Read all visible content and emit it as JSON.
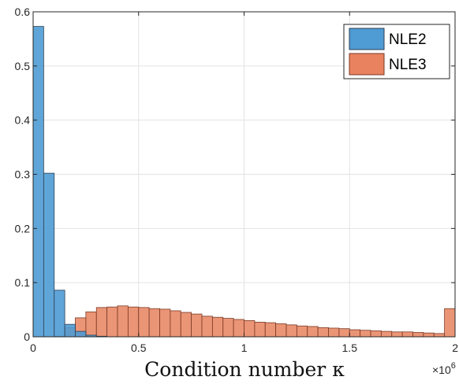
{
  "chart_data": {
    "type": "histogram",
    "xlabel": "Condition number κ",
    "x_exponent_base": "×10",
    "x_exponent_power": "6",
    "xlim": [
      0,
      2
    ],
    "ylim": [
      0,
      0.6
    ],
    "x_ticks": [
      "0",
      "0.5",
      "1",
      "1.5",
      "2"
    ],
    "y_ticks": [
      "0",
      "0.1",
      "0.2",
      "0.3",
      "0.4",
      "0.5",
      "0.6"
    ],
    "x_tick_values": [
      0,
      0.5,
      1,
      1.5,
      2
    ],
    "y_tick_values": [
      0,
      0.1,
      0.2,
      0.3,
      0.4,
      0.5,
      0.6
    ],
    "grid": true,
    "legend_position": "top-right",
    "bin_width": 0.05,
    "series": [
      {
        "name": "NLE2",
        "color": "#4f9bd4",
        "edge_color": "#2b3f52",
        "values": [
          0.573,
          0.302,
          0.086,
          0.023,
          0.01,
          0.003,
          0.001,
          0,
          0,
          0,
          0,
          0,
          0,
          0,
          0,
          0,
          0,
          0,
          0,
          0,
          0,
          0,
          0,
          0,
          0,
          0,
          0,
          0,
          0,
          0,
          0,
          0,
          0,
          0,
          0,
          0,
          0,
          0,
          0,
          0
        ]
      },
      {
        "name": "NLE3",
        "color": "#e8825f",
        "edge_color": "#7a3a24",
        "values": [
          0,
          0,
          0.001,
          0.017,
          0.035,
          0.046,
          0.054,
          0.055,
          0.057,
          0.055,
          0.054,
          0.052,
          0.051,
          0.048,
          0.045,
          0.042,
          0.038,
          0.036,
          0.034,
          0.032,
          0.03,
          0.027,
          0.026,
          0.024,
          0.022,
          0.02,
          0.019,
          0.017,
          0.016,
          0.015,
          0.013,
          0.012,
          0.011,
          0.01,
          0.009,
          0.009,
          0.008,
          0.007,
          0.006,
          0.052
        ]
      }
    ]
  }
}
